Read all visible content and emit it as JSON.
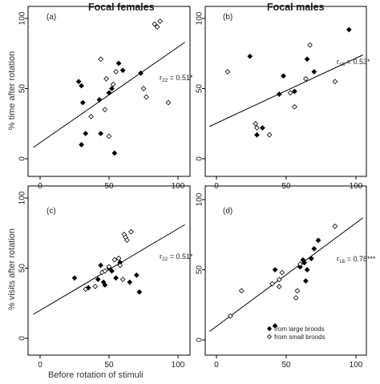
{
  "figure": {
    "col_titles": [
      "Focal females",
      "Focal males"
    ],
    "row_ylabels": [
      "% time after rotation",
      "% visits after rotation"
    ],
    "xlabel": "Before rotation of stimuli",
    "legend": {
      "large": "from large broods",
      "small": "from small broods"
    }
  },
  "chart_data": [
    {
      "type": "scatter",
      "panel": "(a)",
      "stat": {
        "base": "r",
        "sub": "22",
        "value": " = 0.51*"
      },
      "xlim": [
        0,
        100
      ],
      "ylim": [
        0,
        100
      ],
      "xticks": [
        0,
        50,
        100
      ],
      "yticks": [
        0,
        50,
        100
      ],
      "fit": [
        [
          -5,
          8
        ],
        [
          105,
          83
        ]
      ],
      "series": [
        {
          "name": "from large broods",
          "marker": "filled",
          "points": [
            [
              28,
              55
            ],
            [
              30,
              52
            ],
            [
              31,
              40
            ],
            [
              33,
              18
            ],
            [
              30,
              10
            ],
            [
              43,
              42
            ],
            [
              44,
              18
            ],
            [
              50,
              47
            ],
            [
              52,
              50
            ],
            [
              54,
              4
            ],
            [
              57,
              68
            ],
            [
              60,
              63
            ],
            [
              73,
              61
            ]
          ]
        },
        {
          "name": "from small broods",
          "marker": "open",
          "points": [
            [
              37,
              30
            ],
            [
              44,
              71
            ],
            [
              47,
              35
            ],
            [
              48,
              57
            ],
            [
              50,
              16
            ],
            [
              53,
              53
            ],
            [
              55,
              62
            ],
            [
              75,
              50
            ],
            [
              77,
              44
            ],
            [
              83,
              96
            ],
            [
              85,
              94
            ],
            [
              87,
              98
            ],
            [
              93,
              40
            ]
          ]
        }
      ]
    },
    {
      "type": "scatter",
      "panel": "(b)",
      "stat": {
        "base": "r",
        "sub": "16",
        "value": " = 0.53*"
      },
      "xlim": [
        0,
        100
      ],
      "ylim": [
        0,
        100
      ],
      "xticks": [
        0,
        50,
        100
      ],
      "yticks": [
        0,
        50,
        100
      ],
      "fit": [
        [
          -5,
          23
        ],
        [
          105,
          74
        ]
      ],
      "series": [
        {
          "name": "from large broods",
          "marker": "filled",
          "points": [
            [
              24,
              73
            ],
            [
              29,
              17
            ],
            [
              33,
              22
            ],
            [
              45,
              46
            ],
            [
              48,
              59
            ],
            [
              56,
              48
            ],
            [
              65,
              71
            ],
            [
              70,
              62
            ],
            [
              95,
              92
            ]
          ]
        },
        {
          "name": "from small broods",
          "marker": "open",
          "points": [
            [
              8,
              62
            ],
            [
              28,
              25
            ],
            [
              29,
              22
            ],
            [
              38,
              17
            ],
            [
              53,
              47
            ],
            [
              56,
              37
            ],
            [
              64,
              57
            ],
            [
              67,
              81
            ],
            [
              85,
              55
            ]
          ]
        }
      ]
    },
    {
      "type": "scatter",
      "panel": "(c)",
      "stat": {
        "base": "r",
        "sub": "22",
        "value": " = 0.51*"
      },
      "xlim": [
        0,
        100
      ],
      "ylim": [
        0,
        100
      ],
      "xticks": [
        0,
        50,
        100
      ],
      "yticks": [
        0,
        50,
        100
      ],
      "fit": [
        [
          -5,
          17
        ],
        [
          105,
          81
        ]
      ],
      "series": [
        {
          "name": "from large broods",
          "marker": "filled",
          "points": [
            [
              25,
              43
            ],
            [
              35,
              36
            ],
            [
              42,
              42
            ],
            [
              44,
              52
            ],
            [
              46,
              40
            ],
            [
              47,
              38
            ],
            [
              50,
              50
            ],
            [
              52,
              48
            ],
            [
              55,
              43
            ],
            [
              58,
              54
            ],
            [
              65,
              40
            ],
            [
              70,
              45
            ],
            [
              72,
              33
            ]
          ]
        },
        {
          "name": "from small broods",
          "marker": "open",
          "points": [
            [
              33,
              35
            ],
            [
              40,
              37
            ],
            [
              45,
              47
            ],
            [
              47,
              48
            ],
            [
              50,
              51
            ],
            [
              54,
              56
            ],
            [
              57,
              57
            ],
            [
              58,
              52
            ],
            [
              60,
              42
            ],
            [
              61,
              74
            ],
            [
              62,
              72
            ],
            [
              63,
              70
            ],
            [
              66,
              76
            ]
          ]
        }
      ]
    },
    {
      "type": "scatter",
      "panel": "(d)",
      "stat": {
        "base": "r",
        "sub": "16",
        "value": " = 0.78***"
      },
      "xlim": [
        0,
        100
      ],
      "ylim": [
        0,
        100
      ],
      "xticks": [
        0,
        50,
        100
      ],
      "yticks": [
        0,
        50,
        100
      ],
      "fit": [
        [
          -5,
          6
        ],
        [
          105,
          87
        ]
      ],
      "series": [
        {
          "name": "from large broods",
          "marker": "filled",
          "points": [
            [
              42,
              10
            ],
            [
              42,
              50
            ],
            [
              60,
              52
            ],
            [
              62,
              57
            ],
            [
              63,
              55
            ],
            [
              64,
              42
            ],
            [
              65,
              50
            ],
            [
              68,
              58
            ],
            [
              70,
              65
            ],
            [
              73,
              71
            ]
          ]
        },
        {
          "name": "from small broods",
          "marker": "open",
          "points": [
            [
              10,
              17
            ],
            [
              18,
              35
            ],
            [
              40,
              40
            ],
            [
              45,
              38
            ],
            [
              45,
              43
            ],
            [
              47,
              48
            ],
            [
              57,
              30
            ],
            [
              58,
              35
            ],
            [
              60,
              54
            ],
            [
              85,
              81
            ]
          ]
        }
      ]
    }
  ]
}
